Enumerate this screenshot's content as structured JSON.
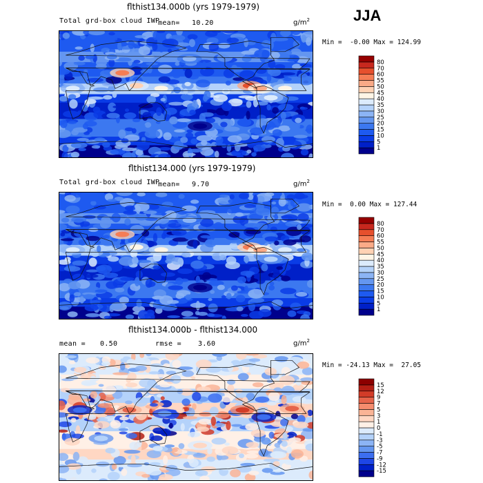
{
  "season": "JJA",
  "chart_data": [
    {
      "type": "heatmap",
      "title": "flthist134.000b (yrs 1979-1979)",
      "variable": "Total grd-box cloud IWP",
      "mean_label": "mean=",
      "mean_value": "10.20",
      "units": "g/m",
      "units_exp": "2",
      "min_label": "Min =",
      "min_value": "-0.00",
      "max_label": "Max =",
      "max_value": "124.99",
      "levels": [
        "1",
        "5",
        "10",
        "15",
        "20",
        "25",
        "30",
        "35",
        "40",
        "45",
        "50",
        "55",
        "60",
        "70",
        "80"
      ],
      "colors": [
        "#00008c",
        "#0020c8",
        "#0a3ce6",
        "#1e5af0",
        "#3c78f0",
        "#6496f0",
        "#8cb4f5",
        "#b4d2fa",
        "#dcebfc",
        "#fff5e6",
        "#ffd2b4",
        "#faaa87",
        "#f57d55",
        "#e6502d",
        "#c8281e",
        "#960000"
      ],
      "regions": [
        {
          "lon": 200,
          "lat": -45,
          "level": 0
        },
        {
          "lon": 20,
          "lat": 8,
          "level": 8
        },
        {
          "lon": 110,
          "lat": 12,
          "level": 10
        },
        {
          "lon": 145,
          "lat": 8,
          "level": 9
        },
        {
          "lon": 270,
          "lat": 12,
          "level": 13
        },
        {
          "lon": 285,
          "lat": 8,
          "level": 11
        },
        {
          "lon": 320,
          "lat": 8,
          "level": 9
        },
        {
          "lon": 185,
          "lat": 50,
          "level": 6
        },
        {
          "lon": 90,
          "lat": 30,
          "level": 12
        },
        {
          "lon": 300,
          "lat": -5,
          "level": 8
        }
      ]
    },
    {
      "type": "heatmap",
      "title": "flthist134.000 (yrs 1979-1979)",
      "variable": "Total grd-box cloud IWP",
      "mean_label": "mean=",
      "mean_value": "9.70",
      "units": "g/m",
      "units_exp": "2",
      "min_label": "Min =",
      "min_value": "0.00",
      "max_label": "Max =",
      "max_value": "127.44",
      "levels": [
        "1",
        "5",
        "10",
        "15",
        "20",
        "25",
        "30",
        "35",
        "40",
        "45",
        "50",
        "55",
        "60",
        "70",
        "80"
      ],
      "colors": [
        "#00008c",
        "#0020c8",
        "#0a3ce6",
        "#1e5af0",
        "#3c78f0",
        "#6496f0",
        "#8cb4f5",
        "#b4d2fa",
        "#dcebfc",
        "#fff5e6",
        "#ffd2b4",
        "#faaa87",
        "#f57d55",
        "#e6502d",
        "#c8281e",
        "#960000"
      ],
      "regions": [
        {
          "lon": 200,
          "lat": -45,
          "level": 0
        },
        {
          "lon": 20,
          "lat": 8,
          "level": 8
        },
        {
          "lon": 110,
          "lat": 12,
          "level": 9
        },
        {
          "lon": 145,
          "lat": 8,
          "level": 9
        },
        {
          "lon": 270,
          "lat": 12,
          "level": 12
        },
        {
          "lon": 285,
          "lat": 8,
          "level": 11
        },
        {
          "lon": 320,
          "lat": 8,
          "level": 8
        },
        {
          "lon": 185,
          "lat": 50,
          "level": 6
        },
        {
          "lon": 90,
          "lat": 30,
          "level": 12
        },
        {
          "lon": 300,
          "lat": -5,
          "level": 7
        }
      ]
    },
    {
      "type": "heatmap",
      "title": "flthist134.000b - flthist134.000",
      "mean_label": "mean =",
      "mean_value": "0.50",
      "rmse_label": "rmse =",
      "rmse_value": "3.60",
      "units": "g/m",
      "units_exp": "2",
      "min_label": "Min =",
      "min_value": "-24.13",
      "max_label": "Max =",
      "max_value": "27.05",
      "levels": [
        "-15",
        "-12",
        "-9",
        "-7",
        "-5",
        "-3",
        "-1",
        "0",
        "1",
        "3",
        "5",
        "7",
        "9",
        "12",
        "15"
      ],
      "colors": [
        "#00008c",
        "#0020c8",
        "#1e46e6",
        "#3c6ef0",
        "#6496f0",
        "#8cb4f5",
        "#b4d2fa",
        "#dcebfc",
        "#fff0e6",
        "#ffd7c3",
        "#fab496",
        "#f58c6e",
        "#e6644b",
        "#d23c28",
        "#b41e14",
        "#8c0000"
      ],
      "regions": [
        {
          "lon": 30,
          "lat": 10,
          "level": 3
        },
        {
          "lon": 100,
          "lat": 10,
          "level": 12
        },
        {
          "lon": 150,
          "lat": 5,
          "level": 4
        },
        {
          "lon": 260,
          "lat": 10,
          "level": 13
        },
        {
          "lon": 290,
          "lat": 0,
          "level": 3
        },
        {
          "lon": 330,
          "lat": 12,
          "level": 12
        },
        {
          "lon": 200,
          "lat": -40,
          "level": 9
        },
        {
          "lon": 60,
          "lat": -30,
          "level": 6
        }
      ]
    }
  ]
}
